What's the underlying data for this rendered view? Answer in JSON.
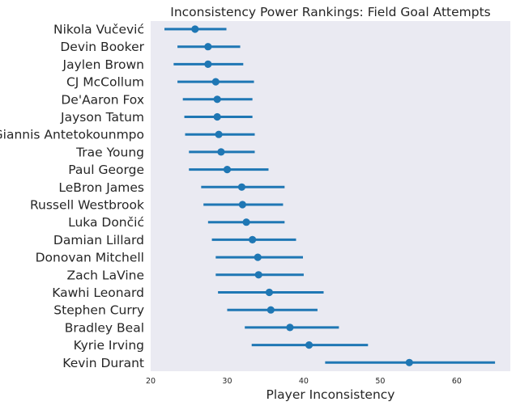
{
  "chart_data": {
    "type": "scatter",
    "subtype": "point-range",
    "title": "Inconsistency Power Rankings: Field Goal Attempts",
    "xlabel": "Player Inconsistency",
    "ylabel": "",
    "xlim": [
      20,
      67
    ],
    "xticks": [
      20,
      30,
      40,
      50,
      60
    ],
    "grid": false,
    "background": "#eaeaf2",
    "color": "#1f77b4",
    "categories": [
      "Nikola Vučević",
      "Devin Booker",
      "Jaylen Brown",
      "CJ McCollum",
      "De'Aaron Fox",
      "Jayson Tatum",
      "Giannis Antetokounmpo",
      "Trae Young",
      "Paul George",
      "LeBron James",
      "Russell Westbrook",
      "Luka Dončić",
      "Damian Lillard",
      "Donovan Mitchell",
      "Zach LaVine",
      "Kawhi Leonard",
      "Stephen Curry",
      "Bradley Beal",
      "Kyrie Irving",
      "Kevin Durant"
    ],
    "values": [
      25.8,
      27.5,
      27.5,
      28.5,
      28.7,
      28.7,
      28.9,
      29.2,
      30.0,
      31.9,
      32.0,
      32.5,
      33.3,
      34.0,
      34.1,
      35.5,
      35.7,
      38.2,
      40.7,
      53.8
    ],
    "lower": [
      21.8,
      23.5,
      23.0,
      23.5,
      24.2,
      24.4,
      24.5,
      25.0,
      25.0,
      26.6,
      26.9,
      27.5,
      28.0,
      28.5,
      28.5,
      28.8,
      30.0,
      32.3,
      33.2,
      42.8
    ],
    "upper": [
      29.9,
      31.7,
      32.1,
      33.5,
      33.3,
      33.3,
      33.6,
      33.6,
      35.4,
      37.5,
      37.3,
      37.5,
      39.0,
      39.9,
      40.0,
      42.6,
      41.8,
      44.6,
      48.4,
      65.0
    ]
  }
}
